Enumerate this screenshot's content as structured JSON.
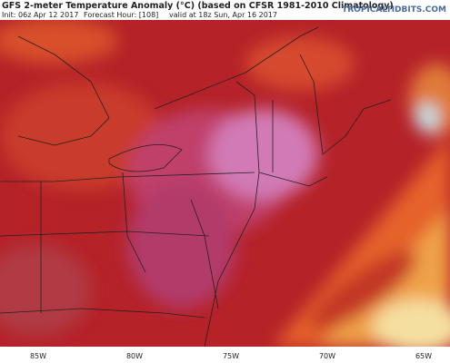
{
  "header": {
    "title": "GFS 2-meter Temperature Anomaly (°C) (based on CFSR 1981-2010 Climatology)",
    "init": "Init: 06z Apr 12 2017",
    "forecast_hour": "Forecast Hour: [108]",
    "valid": "valid at 18z Sun, Apr 16 2017",
    "credit": "TROPICALTIDBITS.COM"
  },
  "map": {
    "lon_labels": [
      "85W",
      "80W",
      "75W",
      "70W",
      "65W"
    ]
  }
}
